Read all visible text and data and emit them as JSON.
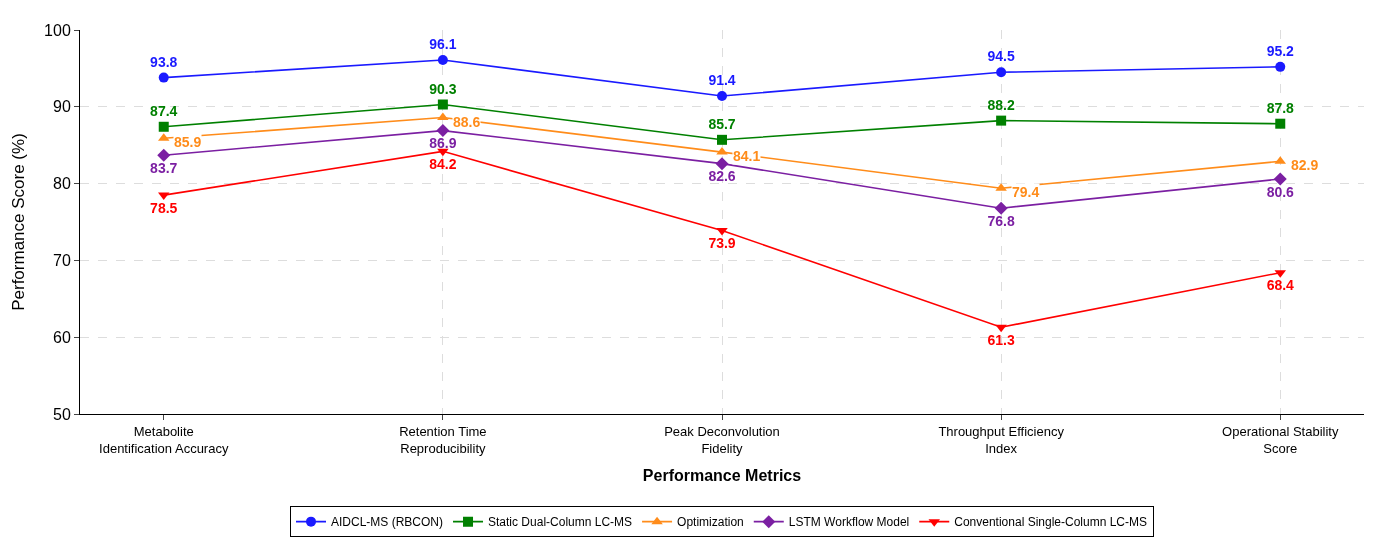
{
  "chart_data": {
    "type": "line",
    "xlabel": "Performance Metrics",
    "ylabel": "Performance Score (%)",
    "categories": [
      "Metabolite Identification Accuracy",
      "Retention Time Reproducibility",
      "Peak Deconvolution Fidelity",
      "Throughput Efficiency Index",
      "Operational Stability Score"
    ],
    "series": [
      {
        "name": "AIDCL-MS (RBCON)",
        "color": "#1a1aff",
        "marker": "circle",
        "values": [
          93.8,
          96.1,
          91.4,
          94.5,
          95.2
        ]
      },
      {
        "name": "Static Dual-Column LC-MS",
        "color": "#008000",
        "marker": "square",
        "values": [
          87.4,
          90.3,
          85.7,
          88.2,
          87.8
        ]
      },
      {
        "name": "Optimization",
        "color": "#ff8c1a",
        "marker": "triangle",
        "values": [
          85.9,
          88.6,
          84.1,
          79.4,
          82.9
        ]
      },
      {
        "name": "LSTM Workflow Model",
        "color": "#7b1fa2",
        "marker": "diamond",
        "values": [
          83.7,
          86.9,
          82.6,
          76.8,
          80.6
        ]
      },
      {
        "name": "Conventional Single-Column LC-MS",
        "color": "#ff0000",
        "marker": "triangle-down",
        "values": [
          78.5,
          84.2,
          73.9,
          61.3,
          68.4
        ]
      }
    ],
    "ylim": [
      50,
      100
    ],
    "yticks": [
      50,
      60,
      70,
      80,
      90,
      100
    ],
    "grid": true,
    "legend": "bottom",
    "line_style": "solid",
    "data_labels": true
  }
}
